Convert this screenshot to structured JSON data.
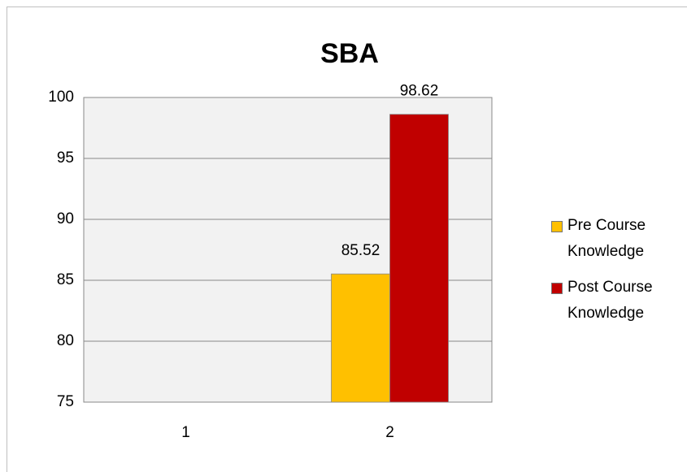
{
  "chart_data": {
    "type": "bar",
    "title": "SBA",
    "categories": [
      "1",
      "2"
    ],
    "series": [
      {
        "name": "Pre Course Knowledge",
        "color": "#ffc000",
        "values": [
          null,
          85.52
        ]
      },
      {
        "name": "Post Course Knowledge",
        "color": "#c00000",
        "values": [
          null,
          98.62
        ]
      }
    ],
    "ylim": [
      75,
      100
    ],
    "yticks": [
      75,
      80,
      85,
      90,
      95,
      100
    ],
    "grid": true,
    "legend": "right"
  }
}
